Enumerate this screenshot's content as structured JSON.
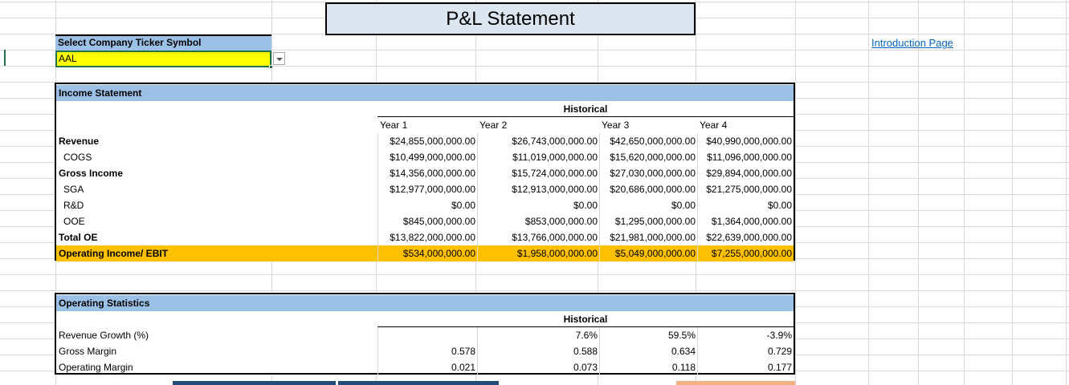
{
  "title": "P&L Statement",
  "selector": {
    "label": "Select Company Ticker Symbol",
    "value": "AAL"
  },
  "intro_link": "Introduction Page",
  "income": {
    "header": "Income Statement",
    "historical": "Historical",
    "years": [
      "Year 1",
      "Year 2",
      "Year 3",
      "Year 4"
    ],
    "rows": [
      {
        "label": "Revenue",
        "values": [
          "$24,855,000,000.00",
          "$26,743,000,000.00",
          "$42,650,000,000.00",
          "$40,990,000,000.00"
        ]
      },
      {
        "label": "COGS",
        "values": [
          "$10,499,000,000.00",
          "$11,019,000,000.00",
          "$15,620,000,000.00",
          "$11,096,000,000.00"
        ]
      },
      {
        "label": "Gross Income",
        "values": [
          "$14,356,000,000.00",
          "$15,724,000,000.00",
          "$27,030,000,000.00",
          "$29,894,000,000.00"
        ]
      },
      {
        "label": "SGA",
        "values": [
          "$12,977,000,000.00",
          "$12,913,000,000.00",
          "$20,686,000,000.00",
          "$21,275,000,000.00"
        ]
      },
      {
        "label": "R&D",
        "values": [
          "$0.00",
          "$0.00",
          "$0.00",
          "$0.00"
        ]
      },
      {
        "label": "OOE",
        "values": [
          "$845,000,000.00",
          "$853,000,000.00",
          "$1,295,000,000.00",
          "$1,364,000,000.00"
        ]
      },
      {
        "label": "Total OE",
        "values": [
          "$13,822,000,000.00",
          "$13,766,000,000.00",
          "$21,981,000,000.00",
          "$22,639,000,000.00"
        ]
      },
      {
        "label": "Operating Income/ EBIT",
        "values": [
          "$534,000,000.00",
          "$1,958,000,000.00",
          "$5,049,000,000.00",
          "$7,255,000,000.00"
        ]
      }
    ]
  },
  "stats": {
    "header": "Operating Statistics",
    "historical": "Historical",
    "rows": [
      {
        "label": "Revenue Growth (%)",
        "values": [
          "",
          "7.6%",
          "59.5%",
          "-3.9%"
        ]
      },
      {
        "label": "Gross Margin",
        "values": [
          "0.578",
          "0.588",
          "0.634",
          "0.729"
        ]
      },
      {
        "label": "Operating Margin",
        "values": [
          "0.021",
          "0.073",
          "0.118",
          "0.177"
        ]
      }
    ]
  },
  "colors": {
    "header_blue": "#9bc2e6",
    "title_fill": "#dce6f1",
    "ebit_orange": "#ffc000",
    "selector_yellow": "#ffff00",
    "link_blue": "#0563c1"
  }
}
